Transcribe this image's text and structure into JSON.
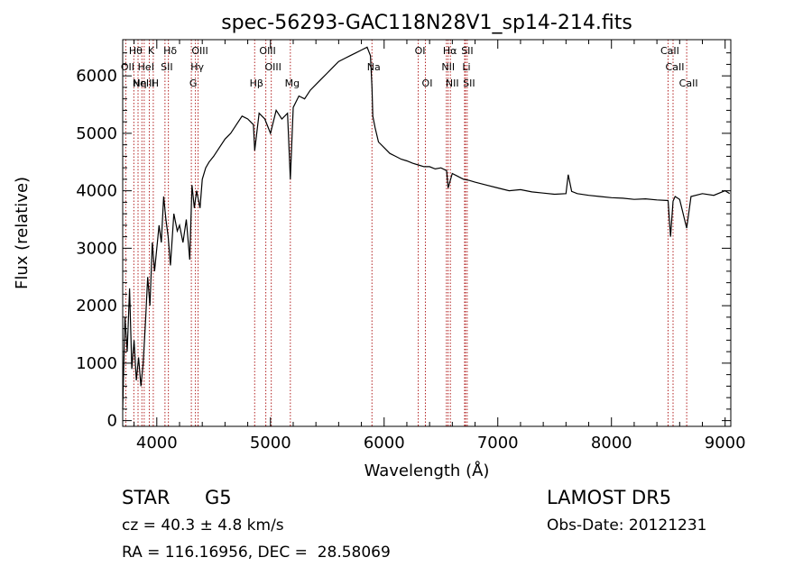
{
  "chart_data": {
    "type": "line",
    "title": "spec-56293-GAC118N28V1_sp14-214.fits",
    "xlabel": "Wavelength (Å)",
    "ylabel": "Flux (relative)",
    "xlim": [
      3700,
      9050
    ],
    "ylim": [
      -100,
      6630
    ],
    "x_ticks": [
      4000,
      5000,
      6000,
      7000,
      8000,
      9000
    ],
    "y_ticks": [
      0,
      1000,
      2000,
      3000,
      4000,
      5000,
      6000
    ],
    "grid": false,
    "series": [
      {
        "x": [
          3700,
          3720,
          3740,
          3760,
          3780,
          3800,
          3820,
          3840,
          3860,
          3880,
          3900,
          3920,
          3940,
          3960,
          3980,
          4000,
          4020,
          4040,
          4060,
          4080,
          4100,
          4120,
          4150,
          4180,
          4200,
          4230,
          4260,
          4290,
          4310,
          4330,
          4350,
          4380,
          4400,
          4430,
          4460,
          4500,
          4550,
          4600,
          4650,
          4700,
          4750,
          4800,
          4850,
          4861,
          4900,
          4950,
          5000,
          5050,
          5100,
          5150,
          5175,
          5200,
          5250,
          5300,
          5350,
          5400,
          5450,
          5500,
          5550,
          5600,
          5650,
          5700,
          5750,
          5800,
          5850,
          5880,
          5893,
          5900,
          5920,
          5950,
          6000,
          6050,
          6100,
          6150,
          6200,
          6250,
          6300,
          6350,
          6400,
          6450,
          6500,
          6550,
          6563,
          6600,
          6650,
          6700,
          6750,
          6800,
          6900,
          7000,
          7100,
          7200,
          7300,
          7400,
          7500,
          7600,
          7620,
          7650,
          7700,
          7800,
          7900,
          8000,
          8100,
          8200,
          8300,
          8400,
          8498,
          8520,
          8542,
          8560,
          8600,
          8662,
          8700,
          8800,
          8900,
          9000,
          9040
        ],
        "y": [
          200,
          1800,
          1200,
          2300,
          900,
          1400,
          700,
          1100,
          600,
          1000,
          1700,
          2500,
          2000,
          3100,
          2600,
          3000,
          3400,
          3100,
          3900,
          3500,
          3200,
          2700,
          3600,
          3300,
          3400,
          3100,
          3500,
          2800,
          4100,
          3700,
          4000,
          3700,
          4200,
          4400,
          4500,
          4600,
          4750,
          4900,
          5000,
          5150,
          5300,
          5250,
          5150,
          4700,
          5350,
          5250,
          5000,
          5400,
          5250,
          5350,
          4200,
          5450,
          5650,
          5600,
          5750,
          5850,
          5950,
          6050,
          6150,
          6250,
          6300,
          6350,
          6400,
          6450,
          6500,
          6350,
          5800,
          5300,
          5100,
          4850,
          4750,
          4650,
          4600,
          4550,
          4520,
          4480,
          4450,
          4420,
          4420,
          4380,
          4400,
          4350,
          4050,
          4300,
          4250,
          4200,
          4180,
          4150,
          4100,
          4050,
          4000,
          4020,
          3980,
          3960,
          3940,
          3950,
          4280,
          3990,
          3950,
          3920,
          3900,
          3880,
          3870,
          3850,
          3860,
          3840,
          3830,
          3200,
          3820,
          3900,
          3850,
          3350,
          3900,
          3950,
          3920,
          4000,
          3950
        ]
      }
    ],
    "lines": [
      {
        "x": 3727,
        "label": "OII"
      },
      {
        "x": 3798,
        "label": "Hθ"
      },
      {
        "x": 3835,
        "label": "Hη"
      },
      {
        "x": 3869,
        "label": "NeIII"
      },
      {
        "x": 3889,
        "label": "HeI"
      },
      {
        "x": 3934,
        "label": "K"
      },
      {
        "x": 3969,
        "label": "H"
      },
      {
        "x": 4072,
        "label": "SII"
      },
      {
        "x": 4102,
        "label": "Hδ"
      },
      {
        "x": 4304,
        "label": "G"
      },
      {
        "x": 4340,
        "label": "Hγ"
      },
      {
        "x": 4363,
        "label": "OIII"
      },
      {
        "x": 4861,
        "label": "Hβ"
      },
      {
        "x": 4959,
        "label": "OIII"
      },
      {
        "x": 5007,
        "label": "OIII"
      },
      {
        "x": 5175,
        "label": "Mg"
      },
      {
        "x": 5893,
        "label": "Na"
      },
      {
        "x": 6300,
        "label": "OI"
      },
      {
        "x": 6363,
        "label": "OI"
      },
      {
        "x": 6548,
        "label": "NII"
      },
      {
        "x": 6563,
        "label": "Hα"
      },
      {
        "x": 6583,
        "label": "NII"
      },
      {
        "x": 6708,
        "label": "Li"
      },
      {
        "x": 6716,
        "label": "SII"
      },
      {
        "x": 6731,
        "label": "SII"
      },
      {
        "x": 8498,
        "label": "CaII"
      },
      {
        "x": 8542,
        "label": "CaII"
      },
      {
        "x": 8662,
        "label": "CaII"
      }
    ],
    "line_color": "#b22222"
  },
  "info": {
    "class": "STAR",
    "subclass": "G5",
    "survey": "LAMOST DR5",
    "cz": "cz = 40.3 ± 4.8 km/s",
    "obs_date": "Obs-Date: 20121231",
    "coords": "RA = 116.16956, DEC =  28.58069"
  }
}
